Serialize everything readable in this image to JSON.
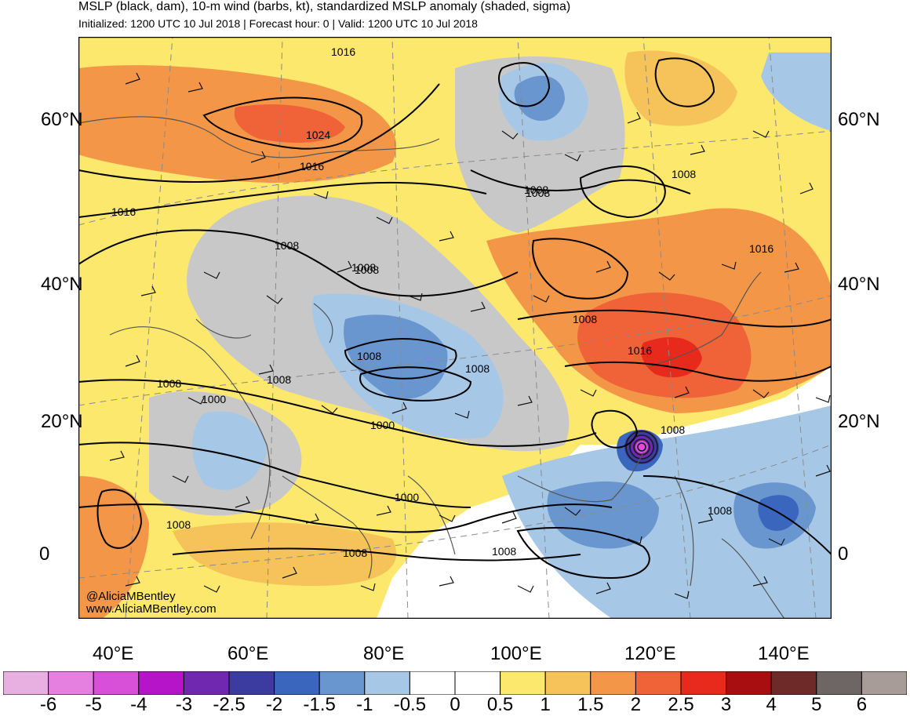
{
  "header": {
    "title": "MSLP (black, dam), 10-m wind (barbs, kt), standardized MSLP anomaly (shaded, sigma)",
    "subtitle": "Initialized: 1200 UTC 10 Jul 2018 | Forecast hour: 0 | Valid: 1200 UTC 10 Jul 2018"
  },
  "axes": {
    "lat_labels": [
      "60°N",
      "40°N",
      "20°N",
      "0"
    ],
    "lon_labels": [
      "40°E",
      "60°E",
      "80°E",
      "100°E",
      "120°E",
      "140°E"
    ]
  },
  "isobar_labels": [
    "1016",
    "1024",
    "1016",
    "1016",
    "1008",
    "1008",
    "1008",
    "1008",
    "1008",
    "1008",
    "1016",
    "1008",
    "1008",
    "1016",
    "1008",
    "1000",
    "1008",
    "1008",
    "1000",
    "1008",
    "1008",
    "1008",
    "1008",
    "1000",
    "1008"
  ],
  "credit": {
    "handle": "@AliciaMBentley",
    "url": "www.AliciaMBentley.com"
  },
  "colorbar": {
    "labels": [
      "-6",
      "-5",
      "-4",
      "-3",
      "-2.5",
      "-2",
      "-1.5",
      "-1",
      "-0.5",
      "0",
      "0.5",
      "1",
      "1.5",
      "2",
      "2.5",
      "3",
      "4",
      "5",
      "6"
    ],
    "colors": [
      "#e8b0e0",
      "#e57fe0",
      "#d850d8",
      "#b614c8",
      "#7028b0",
      "#3c3ca0",
      "#3a66be",
      "#6a96d0",
      "#a6c8e6",
      "#ffffff",
      "#ffffff",
      "#fce86c",
      "#f6c25a",
      "#f49648",
      "#f06238",
      "#e82a1c",
      "#a80e10",
      "#6e2a28",
      "#6e6664",
      "#a89c98"
    ]
  }
}
